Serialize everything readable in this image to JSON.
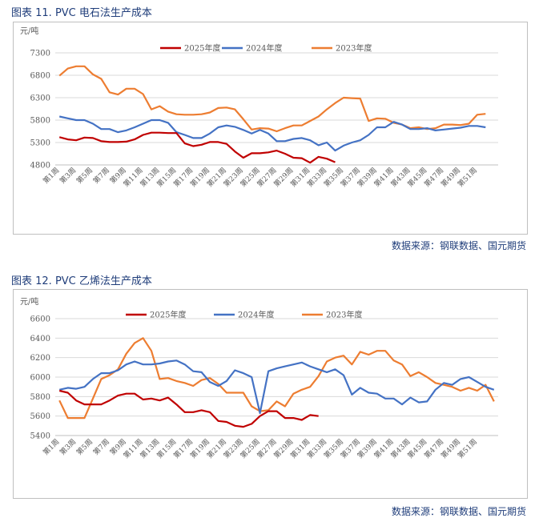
{
  "source_text": "数据来源：钢联数据、国元期货",
  "chart_data": [
    {
      "type": "line",
      "title": "图表 11.  PVC 电石法生产成本",
      "unit_label": "元/吨",
      "ylim": [
        4800,
        7300
      ],
      "yticks": [
        "7300",
        "6800",
        "6300",
        "5800",
        "5300",
        "4800"
      ],
      "ytick_values": [
        7300,
        6800,
        6300,
        5800,
        5300,
        4800
      ],
      "xtick_labels": [
        "第1周",
        "第3周",
        "第5周",
        "第7周",
        "第9周",
        "第11周",
        "第13周",
        "第15周",
        "第17周",
        "第19周",
        "第21周",
        "第23周",
        "第25周",
        "第27周",
        "第29周",
        "第31周",
        "第33周",
        "第35周",
        "第37周",
        "第39周",
        "第41周",
        "第43周",
        "第45周",
        "第47周",
        "第49周",
        "第51周"
      ],
      "x_count": 53,
      "series": [
        {
          "name": "2025年度",
          "color": "#c00000",
          "values": [
            5420,
            5370,
            5350,
            5410,
            5400,
            5330,
            5310,
            5310,
            5320,
            5370,
            5470,
            5520,
            5520,
            5510,
            5510,
            5280,
            5220,
            5250,
            5310,
            5310,
            5270,
            5100,
            4960,
            5060,
            5060,
            5080,
            5120,
            5050,
            4960,
            4950,
            4850,
            4980,
            4940,
            4860
          ]
        },
        {
          "name": "2024年度",
          "color": "#4472c4",
          "values": [
            5880,
            5840,
            5800,
            5800,
            5720,
            5600,
            5600,
            5530,
            5570,
            5640,
            5720,
            5800,
            5800,
            5740,
            5530,
            5470,
            5400,
            5400,
            5500,
            5640,
            5680,
            5650,
            5580,
            5500,
            5580,
            5500,
            5330,
            5330,
            5380,
            5400,
            5350,
            5240,
            5300,
            5120,
            5230,
            5300,
            5350,
            5470,
            5640,
            5640,
            5760,
            5700,
            5600,
            5600,
            5620,
            5570,
            5590,
            5610,
            5630,
            5670,
            5670,
            5640
          ]
        },
        {
          "name": "2023年度",
          "color": "#ed7d31",
          "values": [
            6790,
            6950,
            7000,
            7000,
            6820,
            6720,
            6420,
            6370,
            6500,
            6500,
            6380,
            6040,
            6110,
            5990,
            5930,
            5920,
            5920,
            5930,
            5970,
            6070,
            6080,
            6040,
            5820,
            5590,
            5620,
            5610,
            5550,
            5620,
            5680,
            5680,
            5780,
            5880,
            6040,
            6180,
            6300,
            6290,
            6280,
            5780,
            5840,
            5830,
            5740,
            5700,
            5620,
            5640,
            5600,
            5620,
            5700,
            5700,
            5690,
            5720,
            5920,
            5940
          ]
        }
      ]
    },
    {
      "type": "line",
      "title": "图表 12.  PVC 乙烯法生产成本",
      "unit_label": "元/吨",
      "ylim": [
        5400,
        6600
      ],
      "yticks": [
        "6600",
        "6400",
        "6200",
        "6000",
        "5800",
        "5600",
        "5400"
      ],
      "ytick_values": [
        6600,
        6400,
        6200,
        6000,
        5800,
        5600,
        5400
      ],
      "xtick_labels": [
        "第1周",
        "第3周",
        "第5周",
        "第7周",
        "第9周",
        "第11周",
        "第13周",
        "第15周",
        "第17周",
        "第19周",
        "第21周",
        "第23周",
        "第25周",
        "第27周",
        "第29周",
        "第31周",
        "第33周",
        "第35周",
        "第37周",
        "第39周",
        "第41周",
        "第43周",
        "第45周",
        "第47周",
        "第49周",
        "第51周"
      ],
      "x_count": 53,
      "series": [
        {
          "name": "2025年度",
          "color": "#c00000",
          "values": [
            5860,
            5840,
            5760,
            5720,
            5720,
            5720,
            5760,
            5810,
            5830,
            5830,
            5770,
            5780,
            5760,
            5790,
            5720,
            5640,
            5640,
            5660,
            5640,
            5550,
            5540,
            5500,
            5490,
            5520,
            5600,
            5650,
            5650,
            5580,
            5580,
            5560,
            5610,
            5600
          ]
        },
        {
          "name": "2024年度",
          "color": "#4472c4",
          "values": [
            5870,
            5890,
            5880,
            5900,
            5980,
            6040,
            6040,
            6070,
            6130,
            6160,
            6130,
            6130,
            6140,
            6160,
            6170,
            6130,
            6060,
            6050,
            5950,
            5910,
            5960,
            6070,
            6040,
            6000,
            5630,
            6060,
            6090,
            6110,
            6130,
            6150,
            6110,
            6080,
            6050,
            6080,
            6020,
            5820,
            5890,
            5840,
            5830,
            5780,
            5780,
            5720,
            5790,
            5740,
            5750,
            5870,
            5940,
            5920,
            5980,
            6000,
            5950,
            5900,
            5870
          ]
        },
        {
          "name": "2023年度",
          "color": "#ed7d31",
          "values": [
            5760,
            5580,
            5580,
            5580,
            5780,
            5980,
            6020,
            6080,
            6240,
            6350,
            6400,
            6270,
            5980,
            5990,
            5960,
            5940,
            5910,
            5970,
            5990,
            5930,
            5840,
            5840,
            5840,
            5700,
            5650,
            5660,
            5750,
            5700,
            5830,
            5870,
            5900,
            6010,
            6160,
            6200,
            6220,
            6130,
            6260,
            6230,
            6270,
            6270,
            6170,
            6130,
            6010,
            6050,
            6000,
            5940,
            5920,
            5900,
            5860,
            5890,
            5860,
            5920,
            5750
          ]
        }
      ]
    }
  ]
}
